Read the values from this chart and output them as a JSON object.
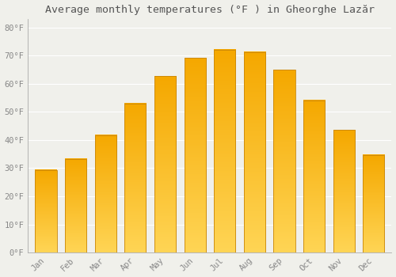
{
  "title": "Average monthly temperatures (°F ) in Gheorghe Lazăr",
  "months": [
    "Jan",
    "Feb",
    "Mar",
    "Apr",
    "May",
    "Jun",
    "Jul",
    "Aug",
    "Sep",
    "Oct",
    "Nov",
    "Dec"
  ],
  "values": [
    29.3,
    33.3,
    41.7,
    52.9,
    62.6,
    69.1,
    72.1,
    71.1,
    64.9,
    54.0,
    43.5,
    34.7
  ],
  "bar_color_top": "#F5A800",
  "bar_color_bottom": "#FFD555",
  "bar_edge_color": "#C8860A",
  "background_color": "#F0F0EB",
  "grid_color": "#FFFFFF",
  "ytick_labels": [
    "0°F",
    "10°F",
    "20°F",
    "30°F",
    "40°F",
    "50°F",
    "60°F",
    "70°F",
    "80°F"
  ],
  "ytick_values": [
    0,
    10,
    20,
    30,
    40,
    50,
    60,
    70,
    80
  ],
  "ylim": [
    0,
    83
  ],
  "title_fontsize": 9.5,
  "tick_fontsize": 7.5,
  "font_color": "#888888",
  "title_color": "#555555"
}
